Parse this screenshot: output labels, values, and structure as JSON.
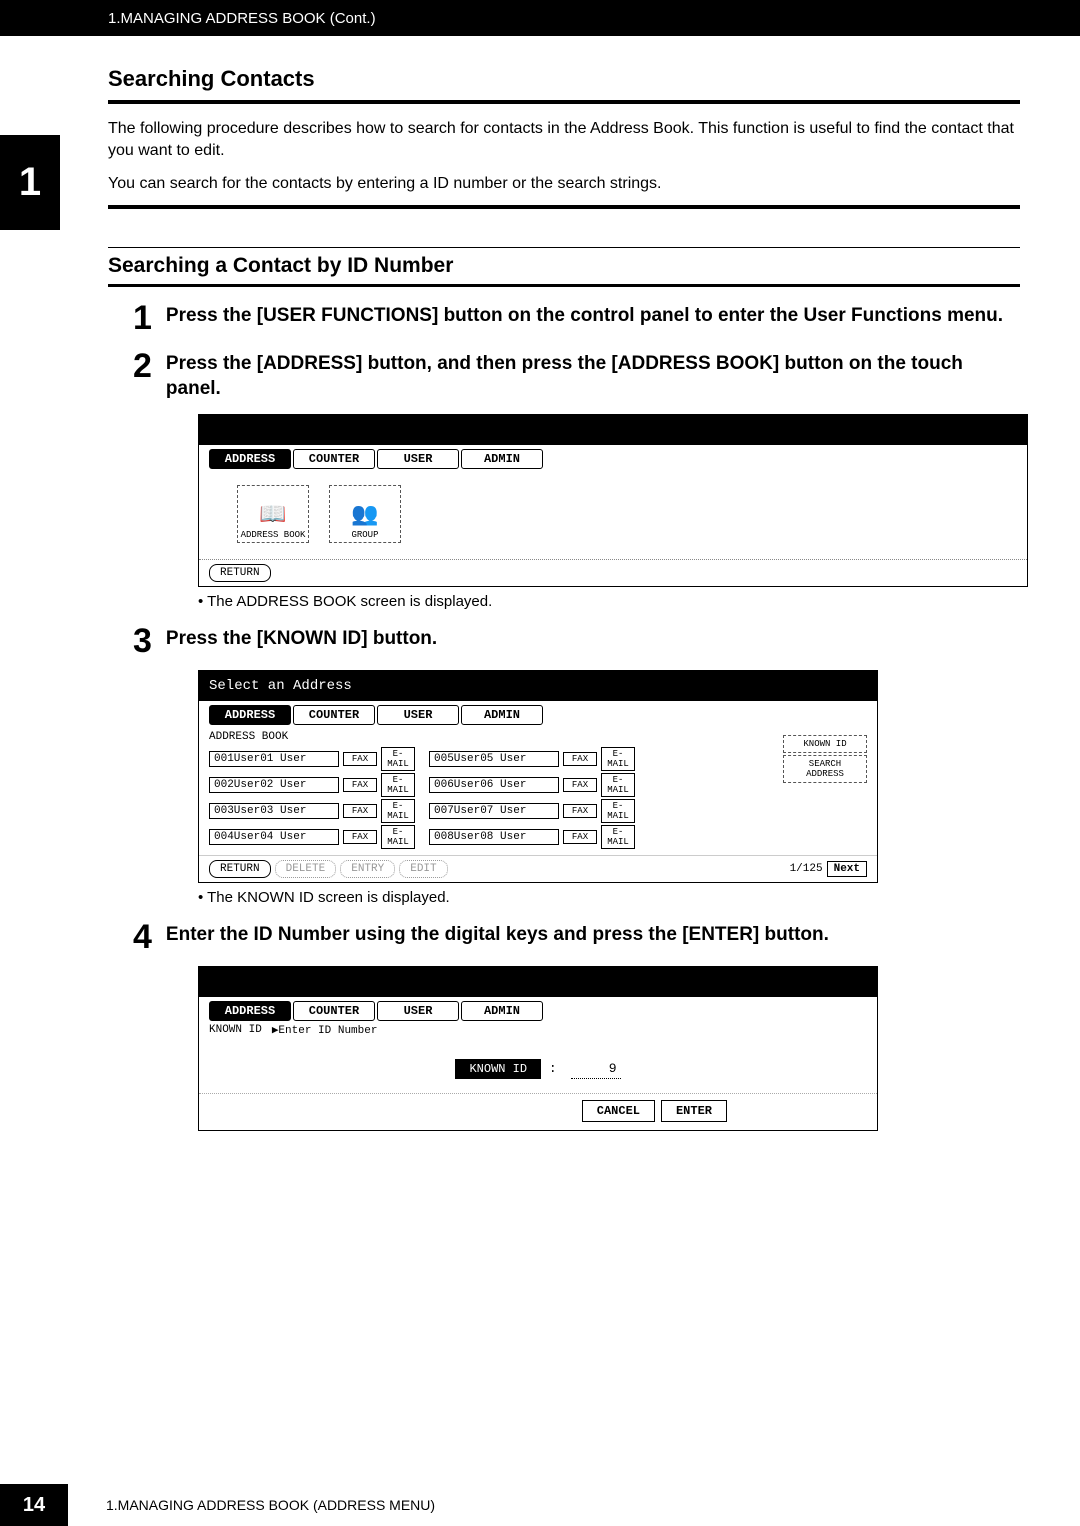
{
  "header": {
    "breadcrumb": "1.MANAGING ADDRESS BOOK (Cont.)"
  },
  "chapter_badge": "1",
  "section": {
    "title": "Searching Contacts",
    "intro_1": "The following procedure describes how to search for contacts in the Address Book.  This function is useful to find the contact that you want to edit.",
    "intro_2": "You can search for the contacts by entering a ID number or the search strings."
  },
  "subsection": {
    "title": "Searching a Contact by ID Number"
  },
  "steps": {
    "s1": {
      "num": "1",
      "text": "Press the [USER FUNCTIONS] button on the control panel to enter the User Functions menu."
    },
    "s2": {
      "num": "2",
      "text": "Press the [ADDRESS] button, and then press the [ADDRESS BOOK] button on the touch panel."
    },
    "s3": {
      "num": "3",
      "text": "Press the [KNOWN ID] button."
    },
    "s4": {
      "num": "4",
      "text": "Enter the ID Number using the digital keys and press the [ENTER] button."
    }
  },
  "notes": {
    "n1": "•  The ADDRESS BOOK screen is displayed.",
    "n2": "•  The KNOWN ID screen is displayed."
  },
  "screen_tabs": {
    "address": "ADDRESS",
    "counter": "COUNTER",
    "user": "USER",
    "admin": "ADMIN"
  },
  "screen1": {
    "icon1_label": "ADDRESS BOOK",
    "icon2_label": "GROUP",
    "return": "RETURN"
  },
  "screen2": {
    "title": "Select an Address",
    "section": "ADDRESS BOOK",
    "rows": [
      {
        "id": "001",
        "name": "User01 User",
        "id2": "005",
        "name2": "User05 User"
      },
      {
        "id": "002",
        "name": "User02 User",
        "id2": "006",
        "name2": "User06 User"
      },
      {
        "id": "003",
        "name": "User03 User",
        "id2": "007",
        "name2": "User07 User"
      },
      {
        "id": "004",
        "name": "User04 User",
        "id2": "008",
        "name2": "User08 User"
      }
    ],
    "fax": "FAX",
    "email": "E-MAIL",
    "known_id": "KNOWN ID",
    "search_address": "SEARCH ADDRESS",
    "return": "RETURN",
    "delete": "DELETE",
    "entry": "ENTRY",
    "edit": "EDIT",
    "page": "1/125",
    "next": "Next"
  },
  "screen3": {
    "known_id_label": "KNOWN ID",
    "enter_id": "▶Enter ID Number",
    "known_id_btn": "KNOWN ID",
    "colon": ":",
    "value": "9",
    "cancel": "CANCEL",
    "enter": "ENTER"
  },
  "footer": {
    "page": "14",
    "text": "1.MANAGING ADDRESS BOOK (ADDRESS MENU)"
  }
}
